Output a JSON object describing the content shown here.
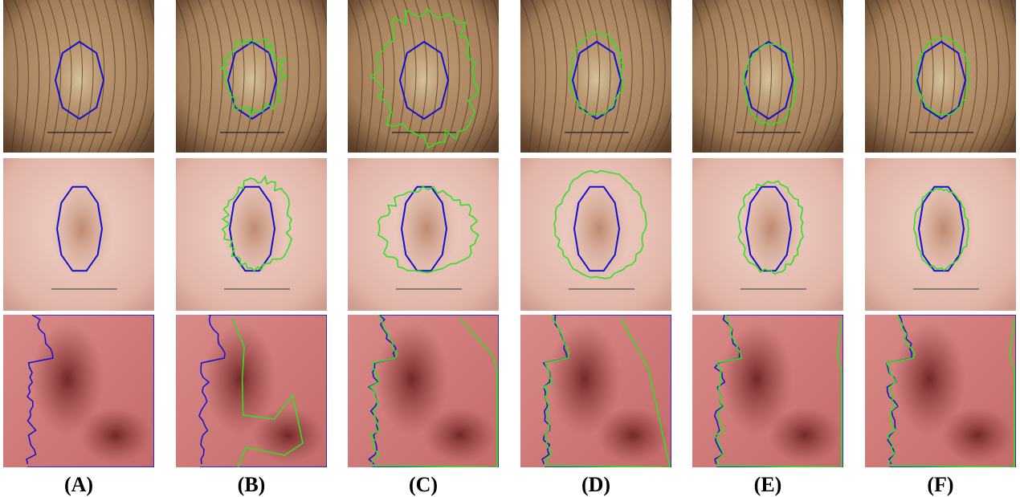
{
  "labels": [
    "(A)",
    "(B)",
    "(C)",
    "(D)",
    "(E)",
    "(F)"
  ]
}
